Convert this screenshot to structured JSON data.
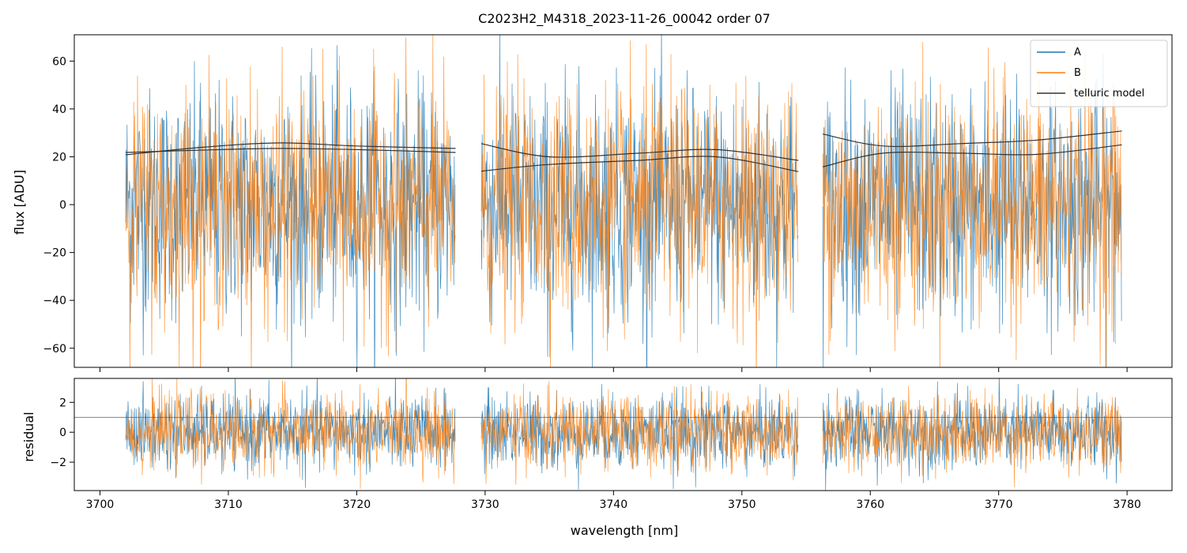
{
  "chart_data": {
    "type": "line",
    "title": "C2023H2_M4318_2023-11-26_00042  order 07",
    "xlabel": "wavelength [nm]",
    "xlim": [
      3698,
      3783.5
    ],
    "x_ticks": [
      3700,
      3710,
      3720,
      3730,
      3740,
      3750,
      3760,
      3770,
      3780
    ],
    "segments": [
      [
        3702.0,
        3727.7
      ],
      [
        3729.7,
        3754.4
      ],
      [
        3756.3,
        3779.6
      ]
    ],
    "colors": {
      "A": "#1f77b4",
      "B": "#ff7f0e",
      "telluric": "#333333",
      "residual_ref": "#555555"
    },
    "panels": [
      {
        "name": "flux",
        "ylabel": "flux [ADU]",
        "ylim": [
          -68,
          71
        ],
        "y_ticks": [
          -60,
          -40,
          -20,
          0,
          20,
          40,
          60
        ],
        "noise_sigma": 24,
        "series": [
          {
            "name": "A",
            "center": 0
          },
          {
            "name": "B",
            "center": 0
          }
        ],
        "telluric_model": {
          "name": "telluric model",
          "curves": [
            {
              "x": [
                3702,
                3708,
                3714,
                3720,
                3727.7
              ],
              "y": [
                21.8,
                22.8,
                23.5,
                23.0,
                21.8
              ]
            },
            {
              "x": [
                3702,
                3708,
                3714,
                3720,
                3727.7
              ],
              "y": [
                20.8,
                24.0,
                25.8,
                24.5,
                23.5
              ]
            },
            {
              "x": [
                3729.7,
                3735,
                3742,
                3748,
                3754.4
              ],
              "y": [
                25.5,
                20.0,
                21.5,
                23.0,
                18.5
              ]
            },
            {
              "x": [
                3729.7,
                3735,
                3742,
                3748,
                3754.4
              ],
              "y": [
                14.0,
                16.8,
                18.5,
                20.0,
                13.8
              ]
            },
            {
              "x": [
                3756.3,
                3761,
                3767,
                3773,
                3779.6
              ],
              "y": [
                29.5,
                24.5,
                25.5,
                27.0,
                30.8
              ]
            },
            {
              "x": [
                3756.3,
                3761,
                3767,
                3773,
                3779.6
              ],
              "y": [
                15.8,
                21.5,
                21.5,
                21.0,
                25.0
              ]
            }
          ]
        },
        "legend": [
          "A",
          "B",
          "telluric model"
        ],
        "legend_position": "top-right"
      },
      {
        "name": "residual",
        "ylabel": "residual",
        "ylim": [
          -3.9,
          3.6
        ],
        "y_ticks": [
          -2,
          0,
          2
        ],
        "noise_sigma": 1.25,
        "reference_line": 1,
        "series": [
          {
            "name": "A",
            "center": 0
          },
          {
            "name": "B",
            "center": 0
          }
        ]
      }
    ]
  }
}
